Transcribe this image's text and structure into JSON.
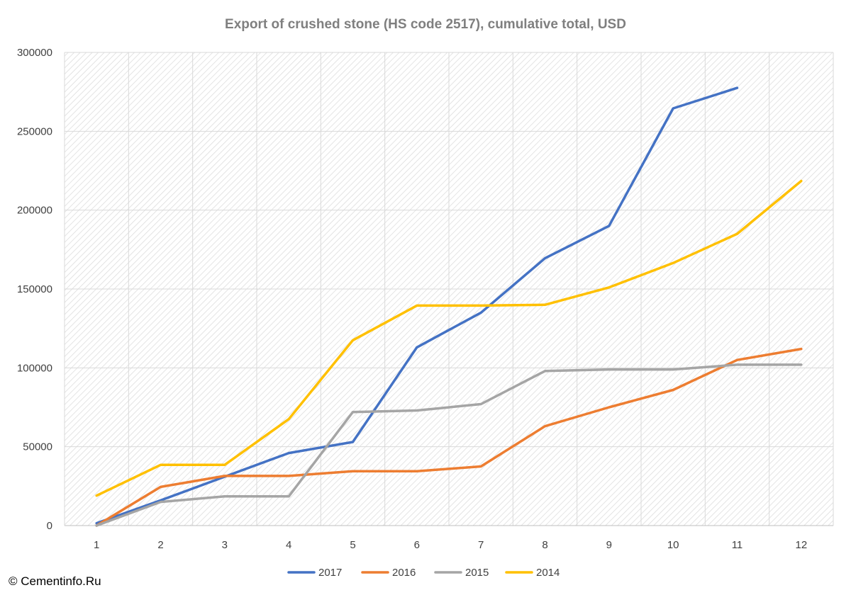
{
  "chart_data": {
    "type": "line",
    "title": "Export of crushed stone (HS code 2517), cumulative total, USD",
    "xlabel": "",
    "ylabel": "",
    "x": [
      1,
      2,
      3,
      4,
      5,
      6,
      7,
      8,
      9,
      10,
      11,
      12
    ],
    "ylim": [
      0,
      300000
    ],
    "yticks": [
      0,
      50000,
      100000,
      150000,
      200000,
      250000,
      300000
    ],
    "grid": true,
    "legend_position": "bottom",
    "series": [
      {
        "name": "2017",
        "color": "#4472c4",
        "values": [
          1500,
          16000,
          31000,
          46000,
          53000,
          113000,
          135000,
          169500,
          190000,
          264500,
          277500,
          null
        ]
      },
      {
        "name": "2016",
        "color": "#ed7d31",
        "values": [
          0,
          24500,
          31500,
          31500,
          34500,
          34500,
          37500,
          63000,
          75000,
          86000,
          105000,
          112000
        ]
      },
      {
        "name": "2015",
        "color": "#a5a5a5",
        "values": [
          0,
          15000,
          18500,
          18500,
          72000,
          73000,
          77000,
          98000,
          99000,
          99000,
          102000,
          102000
        ]
      },
      {
        "name": "2014",
        "color": "#ffc000",
        "values": [
          19000,
          38500,
          38500,
          67500,
          117500,
          139500,
          139500,
          140000,
          151000,
          166500,
          185000,
          218500
        ]
      }
    ]
  },
  "credit": "© Cementinfo.Ru"
}
